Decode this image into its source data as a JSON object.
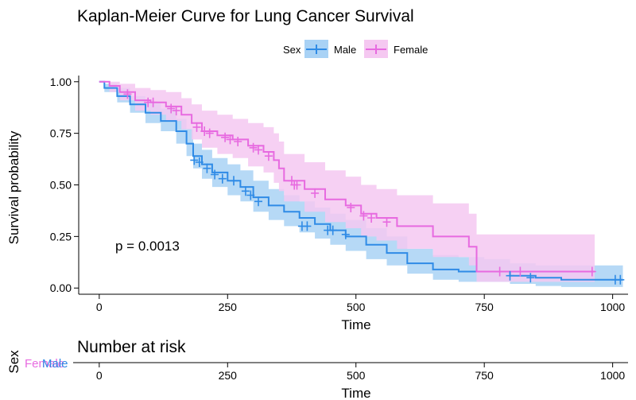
{
  "chart_data": {
    "type": "line",
    "title": "Kaplan-Meier Curve for Lung Cancer Survival",
    "xlabel": "Time",
    "ylabel": "Survival probability",
    "xlim": [
      -40,
      1030
    ],
    "ylim": [
      -0.03,
      1.03
    ],
    "xticks": [
      0,
      250,
      500,
      750,
      1000
    ],
    "yticks": [
      "0.00",
      "0.25",
      "0.50",
      "0.75",
      "1.00"
    ],
    "legend": {
      "title": "Sex",
      "position": "top"
    },
    "annotation": "p = 0.0013",
    "series": [
      {
        "name": "Male",
        "color": "#2f8be6",
        "band_color": "#a9d2f5",
        "curve": [
          [
            0,
            1.0
          ],
          [
            10,
            0.97
          ],
          [
            35,
            0.93
          ],
          [
            60,
            0.89
          ],
          [
            90,
            0.85
          ],
          [
            120,
            0.81
          ],
          [
            150,
            0.76
          ],
          [
            170,
            0.7
          ],
          [
            183,
            0.64
          ],
          [
            200,
            0.6
          ],
          [
            220,
            0.56
          ],
          [
            250,
            0.52
          ],
          [
            275,
            0.49
          ],
          [
            300,
            0.44
          ],
          [
            330,
            0.4
          ],
          [
            360,
            0.37
          ],
          [
            390,
            0.34
          ],
          [
            420,
            0.31
          ],
          [
            450,
            0.28
          ],
          [
            480,
            0.25
          ],
          [
            520,
            0.21
          ],
          [
            560,
            0.17
          ],
          [
            600,
            0.12
          ],
          [
            650,
            0.09
          ],
          [
            700,
            0.08
          ],
          [
            750,
            0.08
          ],
          [
            800,
            0.06
          ],
          [
            850,
            0.05
          ],
          [
            900,
            0.04
          ],
          [
            1020,
            0.04
          ]
        ],
        "lower": [
          [
            0,
            1.0
          ],
          [
            10,
            0.95
          ],
          [
            35,
            0.9
          ],
          [
            60,
            0.85
          ],
          [
            90,
            0.8
          ],
          [
            120,
            0.76
          ],
          [
            150,
            0.7
          ],
          [
            170,
            0.64
          ],
          [
            183,
            0.58
          ],
          [
            200,
            0.53
          ],
          [
            220,
            0.49
          ],
          [
            250,
            0.45
          ],
          [
            275,
            0.42
          ],
          [
            300,
            0.37
          ],
          [
            330,
            0.33
          ],
          [
            360,
            0.3
          ],
          [
            390,
            0.27
          ],
          [
            420,
            0.24
          ],
          [
            450,
            0.21
          ],
          [
            480,
            0.18
          ],
          [
            520,
            0.14
          ],
          [
            560,
            0.11
          ],
          [
            600,
            0.07
          ],
          [
            650,
            0.04
          ],
          [
            700,
            0.03
          ],
          [
            750,
            0.03
          ],
          [
            800,
            0.02
          ],
          [
            850,
            0.01
          ],
          [
            900,
            0.005
          ],
          [
            1020,
            0.005
          ]
        ],
        "upper": [
          [
            0,
            1.0
          ],
          [
            10,
            0.99
          ],
          [
            35,
            0.97
          ],
          [
            60,
            0.93
          ],
          [
            90,
            0.9
          ],
          [
            120,
            0.87
          ],
          [
            150,
            0.82
          ],
          [
            170,
            0.77
          ],
          [
            183,
            0.7
          ],
          [
            200,
            0.67
          ],
          [
            220,
            0.63
          ],
          [
            250,
            0.6
          ],
          [
            275,
            0.57
          ],
          [
            300,
            0.52
          ],
          [
            330,
            0.48
          ],
          [
            360,
            0.45
          ],
          [
            390,
            0.42
          ],
          [
            420,
            0.39
          ],
          [
            450,
            0.36
          ],
          [
            480,
            0.33
          ],
          [
            520,
            0.29
          ],
          [
            560,
            0.25
          ],
          [
            600,
            0.19
          ],
          [
            650,
            0.16
          ],
          [
            700,
            0.15
          ],
          [
            750,
            0.14
          ],
          [
            800,
            0.12
          ],
          [
            850,
            0.11
          ],
          [
            900,
            0.11
          ],
          [
            1020,
            0.11
          ]
        ],
        "censors": [
          [
            185,
            0.62
          ],
          [
            195,
            0.61
          ],
          [
            210,
            0.58
          ],
          [
            225,
            0.55
          ],
          [
            240,
            0.53
          ],
          [
            262,
            0.52
          ],
          [
            285,
            0.47
          ],
          [
            295,
            0.45
          ],
          [
            310,
            0.42
          ],
          [
            395,
            0.3
          ],
          [
            405,
            0.3
          ],
          [
            445,
            0.28
          ],
          [
            455,
            0.28
          ],
          [
            480,
            0.26
          ],
          [
            800,
            0.06
          ],
          [
            840,
            0.05
          ],
          [
            1005,
            0.04
          ],
          [
            1015,
            0.04
          ]
        ]
      },
      {
        "name": "Female",
        "color": "#e76ae0",
        "band_color": "#f5c8f1",
        "curve": [
          [
            0,
            1.0
          ],
          [
            20,
            0.98
          ],
          [
            40,
            0.95
          ],
          [
            70,
            0.91
          ],
          [
            100,
            0.9
          ],
          [
            130,
            0.88
          ],
          [
            160,
            0.84
          ],
          [
            180,
            0.8
          ],
          [
            200,
            0.76
          ],
          [
            230,
            0.74
          ],
          [
            260,
            0.72
          ],
          [
            290,
            0.69
          ],
          [
            320,
            0.66
          ],
          [
            340,
            0.62
          ],
          [
            350,
            0.58
          ],
          [
            360,
            0.52
          ],
          [
            400,
            0.48
          ],
          [
            440,
            0.43
          ],
          [
            480,
            0.4
          ],
          [
            510,
            0.36
          ],
          [
            540,
            0.34
          ],
          [
            580,
            0.3
          ],
          [
            650,
            0.25
          ],
          [
            720,
            0.2
          ],
          [
            735,
            0.08
          ],
          [
            780,
            0.08
          ],
          [
            965,
            0.08
          ]
        ],
        "lower": [
          [
            0,
            1.0
          ],
          [
            20,
            0.95
          ],
          [
            40,
            0.91
          ],
          [
            70,
            0.86
          ],
          [
            100,
            0.84
          ],
          [
            130,
            0.81
          ],
          [
            160,
            0.77
          ],
          [
            180,
            0.72
          ],
          [
            200,
            0.68
          ],
          [
            230,
            0.65
          ],
          [
            260,
            0.63
          ],
          [
            290,
            0.59
          ],
          [
            320,
            0.56
          ],
          [
            340,
            0.51
          ],
          [
            350,
            0.47
          ],
          [
            360,
            0.42
          ],
          [
            400,
            0.37
          ],
          [
            440,
            0.32
          ],
          [
            480,
            0.29
          ],
          [
            510,
            0.25
          ],
          [
            540,
            0.23
          ],
          [
            580,
            0.19
          ],
          [
            650,
            0.15
          ],
          [
            720,
            0.11
          ],
          [
            735,
            0.03
          ],
          [
            780,
            0.03
          ],
          [
            965,
            0.03
          ]
        ],
        "upper": [
          [
            0,
            1.0
          ],
          [
            20,
            1.0
          ],
          [
            40,
            0.99
          ],
          [
            70,
            0.97
          ],
          [
            100,
            0.96
          ],
          [
            130,
            0.95
          ],
          [
            160,
            0.92
          ],
          [
            180,
            0.89
          ],
          [
            200,
            0.86
          ],
          [
            230,
            0.84
          ],
          [
            260,
            0.82
          ],
          [
            290,
            0.8
          ],
          [
            320,
            0.78
          ],
          [
            340,
            0.75
          ],
          [
            350,
            0.71
          ],
          [
            360,
            0.65
          ],
          [
            400,
            0.61
          ],
          [
            440,
            0.57
          ],
          [
            480,
            0.54
          ],
          [
            510,
            0.5
          ],
          [
            540,
            0.48
          ],
          [
            580,
            0.45
          ],
          [
            650,
            0.41
          ],
          [
            720,
            0.36
          ],
          [
            735,
            0.26
          ],
          [
            780,
            0.26
          ],
          [
            965,
            0.26
          ]
        ],
        "censors": [
          [
            55,
            0.94
          ],
          [
            95,
            0.9
          ],
          [
            105,
            0.9
          ],
          [
            140,
            0.87
          ],
          [
            150,
            0.86
          ],
          [
            190,
            0.78
          ],
          [
            205,
            0.76
          ],
          [
            215,
            0.75
          ],
          [
            245,
            0.73
          ],
          [
            255,
            0.72
          ],
          [
            270,
            0.71
          ],
          [
            300,
            0.68
          ],
          [
            310,
            0.67
          ],
          [
            330,
            0.64
          ],
          [
            375,
            0.52
          ],
          [
            380,
            0.5
          ],
          [
            385,
            0.5
          ],
          [
            420,
            0.46
          ],
          [
            490,
            0.39
          ],
          [
            515,
            0.35
          ],
          [
            530,
            0.34
          ],
          [
            560,
            0.32
          ],
          [
            780,
            0.08
          ],
          [
            820,
            0.08
          ],
          [
            960,
            0.08
          ]
        ]
      }
    ],
    "risk_table": {
      "title": "Number at risk",
      "ylabel": "Sex",
      "strata_labels": [
        "Female",
        "Male"
      ],
      "xlabel": "Time",
      "xticks": [
        0,
        250,
        500,
        750,
        1000
      ]
    }
  }
}
